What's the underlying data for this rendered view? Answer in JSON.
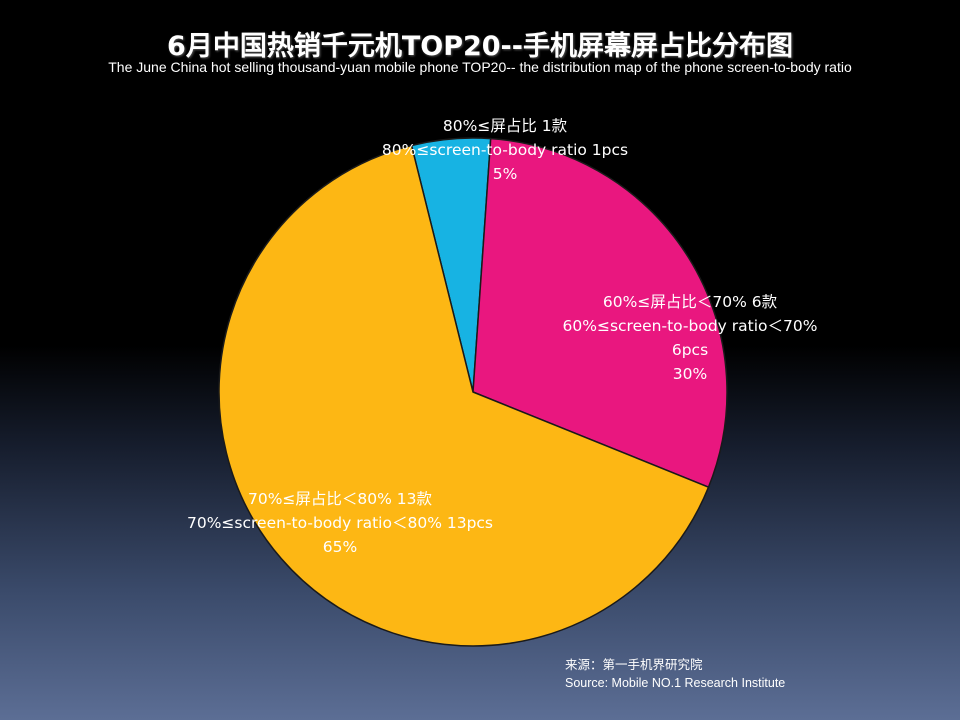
{
  "title": "6月中国热销千元机TOP20--手机屏幕屏占比分布图",
  "subtitle": "The  June China hot selling thousand-yuan mobile phone TOP20-- the distribution map of the phone screen-to-body ratio",
  "source": {
    "line1": "来源：第一手机界研究院",
    "line2": "Source: Mobile NO.1 Research Institute"
  },
  "chart_data": {
    "type": "pie",
    "title": "6月中国热销千元机TOP20--手机屏幕屏占比分布图",
    "slices": [
      {
        "label_lines": [
          "80%≤屏占比 1款",
          "80%≤screen-to-body ratio 1pcs",
          "5%"
        ],
        "count": 1,
        "percent": 5,
        "color": "#17b3e3"
      },
      {
        "label_lines": [
          "60%≤屏占比＜70% 6款",
          "60%≤screen-to-body ratio＜70%",
          "6pcs",
          "30%"
        ],
        "count": 6,
        "percent": 30,
        "color": "#e9177f"
      },
      {
        "label_lines": [
          "70%≤屏占比＜80% 13款",
          "70%≤screen-to-body ratio＜80% 13pcs",
          "65%"
        ],
        "count": 13,
        "percent": 65,
        "color": "#fdb714"
      }
    ]
  }
}
